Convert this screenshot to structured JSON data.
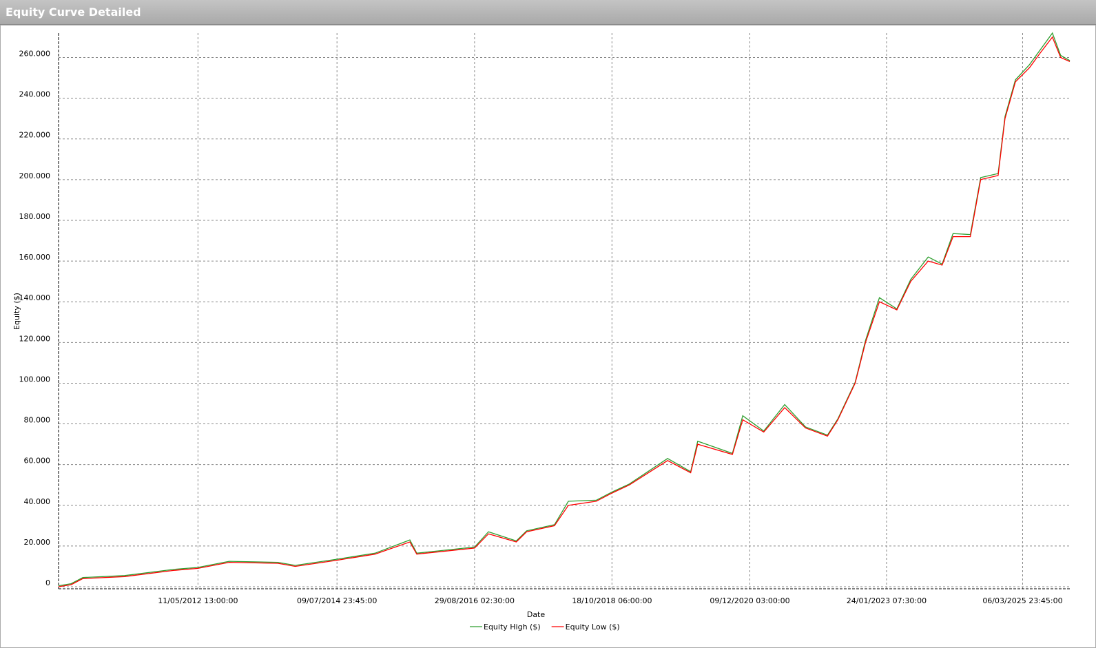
{
  "window_title": "Equity Curve Detailed",
  "chart_data": {
    "type": "line",
    "x_label": "Date",
    "y_label": "Equity ($)",
    "x": [
      "12/03/2010",
      "22/05/2010",
      "28/07/2010",
      "22/03/2011",
      "24/12/2011",
      "11/05/2012",
      "05/11/2012",
      "08/08/2013",
      "15/11/2013",
      "09/07/2014",
      "11/02/2015",
      "28/08/2015",
      "06/10/2015",
      "29/08/2016",
      "16/11/2016",
      "23/04/2017",
      "21/06/2017",
      "26/11/2017",
      "13/02/2018",
      "21/07/2018",
      "18/10/2018",
      "25/01/2019",
      "30/08/2019",
      "08/01/2020",
      "17/02/2020",
      "01/09/2020",
      "30/10/2020",
      "26/02/2021",
      "25/06/2021",
      "21/10/2021",
      "23/02/2022",
      "23/04/2022",
      "30/07/2022",
      "27/09/2022",
      "15/12/2022",
      "24/03/2023",
      "11/06/2023",
      "18/09/2023",
      "06/12/2023",
      "06/02/2024",
      "14/05/2024",
      "12/07/2024",
      "19/10/2024",
      "27/11/2024",
      "25/01/2025",
      "15/04/2025",
      "13/06/2025",
      "23/08/2025",
      "09/10/2025",
      "30/11/2025"
    ],
    "series": [
      {
        "name": "Equity High ($)",
        "color": "#2e9e2e",
        "values": [
          500,
          1500,
          4500,
          5500,
          8500,
          9500,
          12500,
          12000,
          10500,
          13500,
          16500,
          23000,
          16500,
          19500,
          27000,
          22500,
          27500,
          30500,
          42000,
          42500,
          46500,
          50500,
          63000,
          56500,
          71500,
          65500,
          84000,
          76500,
          89500,
          78500,
          74500,
          82500,
          100500,
          121000,
          142000,
          136500,
          151000,
          162000,
          158500,
          173500,
          173000,
          201000,
          203000,
          231000,
          249000,
          256500,
          263500,
          272000,
          261000,
          258500
        ]
      },
      {
        "name": "Equity Low ($)",
        "color": "#ff0000",
        "values": [
          0,
          1000,
          4000,
          5000,
          8000,
          9000,
          12000,
          11500,
          10000,
          13000,
          16000,
          22000,
          16000,
          19000,
          26000,
          22000,
          27000,
          30000,
          40000,
          42000,
          46000,
          50000,
          62000,
          56000,
          70000,
          65000,
          82000,
          76000,
          88000,
          78000,
          74000,
          82000,
          100000,
          120000,
          140000,
          136000,
          150000,
          160000,
          158000,
          172000,
          172000,
          200000,
          202000,
          230000,
          248000,
          255000,
          262000,
          270000,
          260000,
          258000
        ]
      }
    ],
    "xlim": [
      "12/03/2010",
      "30/11/2025"
    ],
    "xticks": [
      "11/05/2012 13:00:00",
      "09/07/2014 23:45:00",
      "29/08/2016 02:30:00",
      "18/10/2018 06:00:00",
      "09/12/2020 03:00:00",
      "24/01/2023 07:30:00",
      "06/03/2025 23:45:00"
    ],
    "ylim": [
      -1000,
      272000
    ],
    "yticks": [
      0,
      {
        "value": 20000,
        "label": "20.000"
      },
      {
        "value": 40000,
        "label": "40.000"
      },
      {
        "value": 60000,
        "label": "60.000"
      },
      {
        "value": 80000,
        "label": "80.000"
      },
      {
        "value": 100000,
        "label": "100.000"
      },
      {
        "value": 120000,
        "label": "120.000"
      },
      {
        "value": 140000,
        "label": "140.000"
      },
      {
        "value": 160000,
        "label": "160.000"
      },
      {
        "value": 180000,
        "label": "180.000"
      },
      {
        "value": 200000,
        "label": "200.000"
      },
      {
        "value": 220000,
        "label": "220.000"
      },
      {
        "value": 240000,
        "label": "240.000"
      },
      {
        "value": 260000,
        "label": "260.000"
      }
    ],
    "grid": true,
    "legend": "bottom"
  }
}
